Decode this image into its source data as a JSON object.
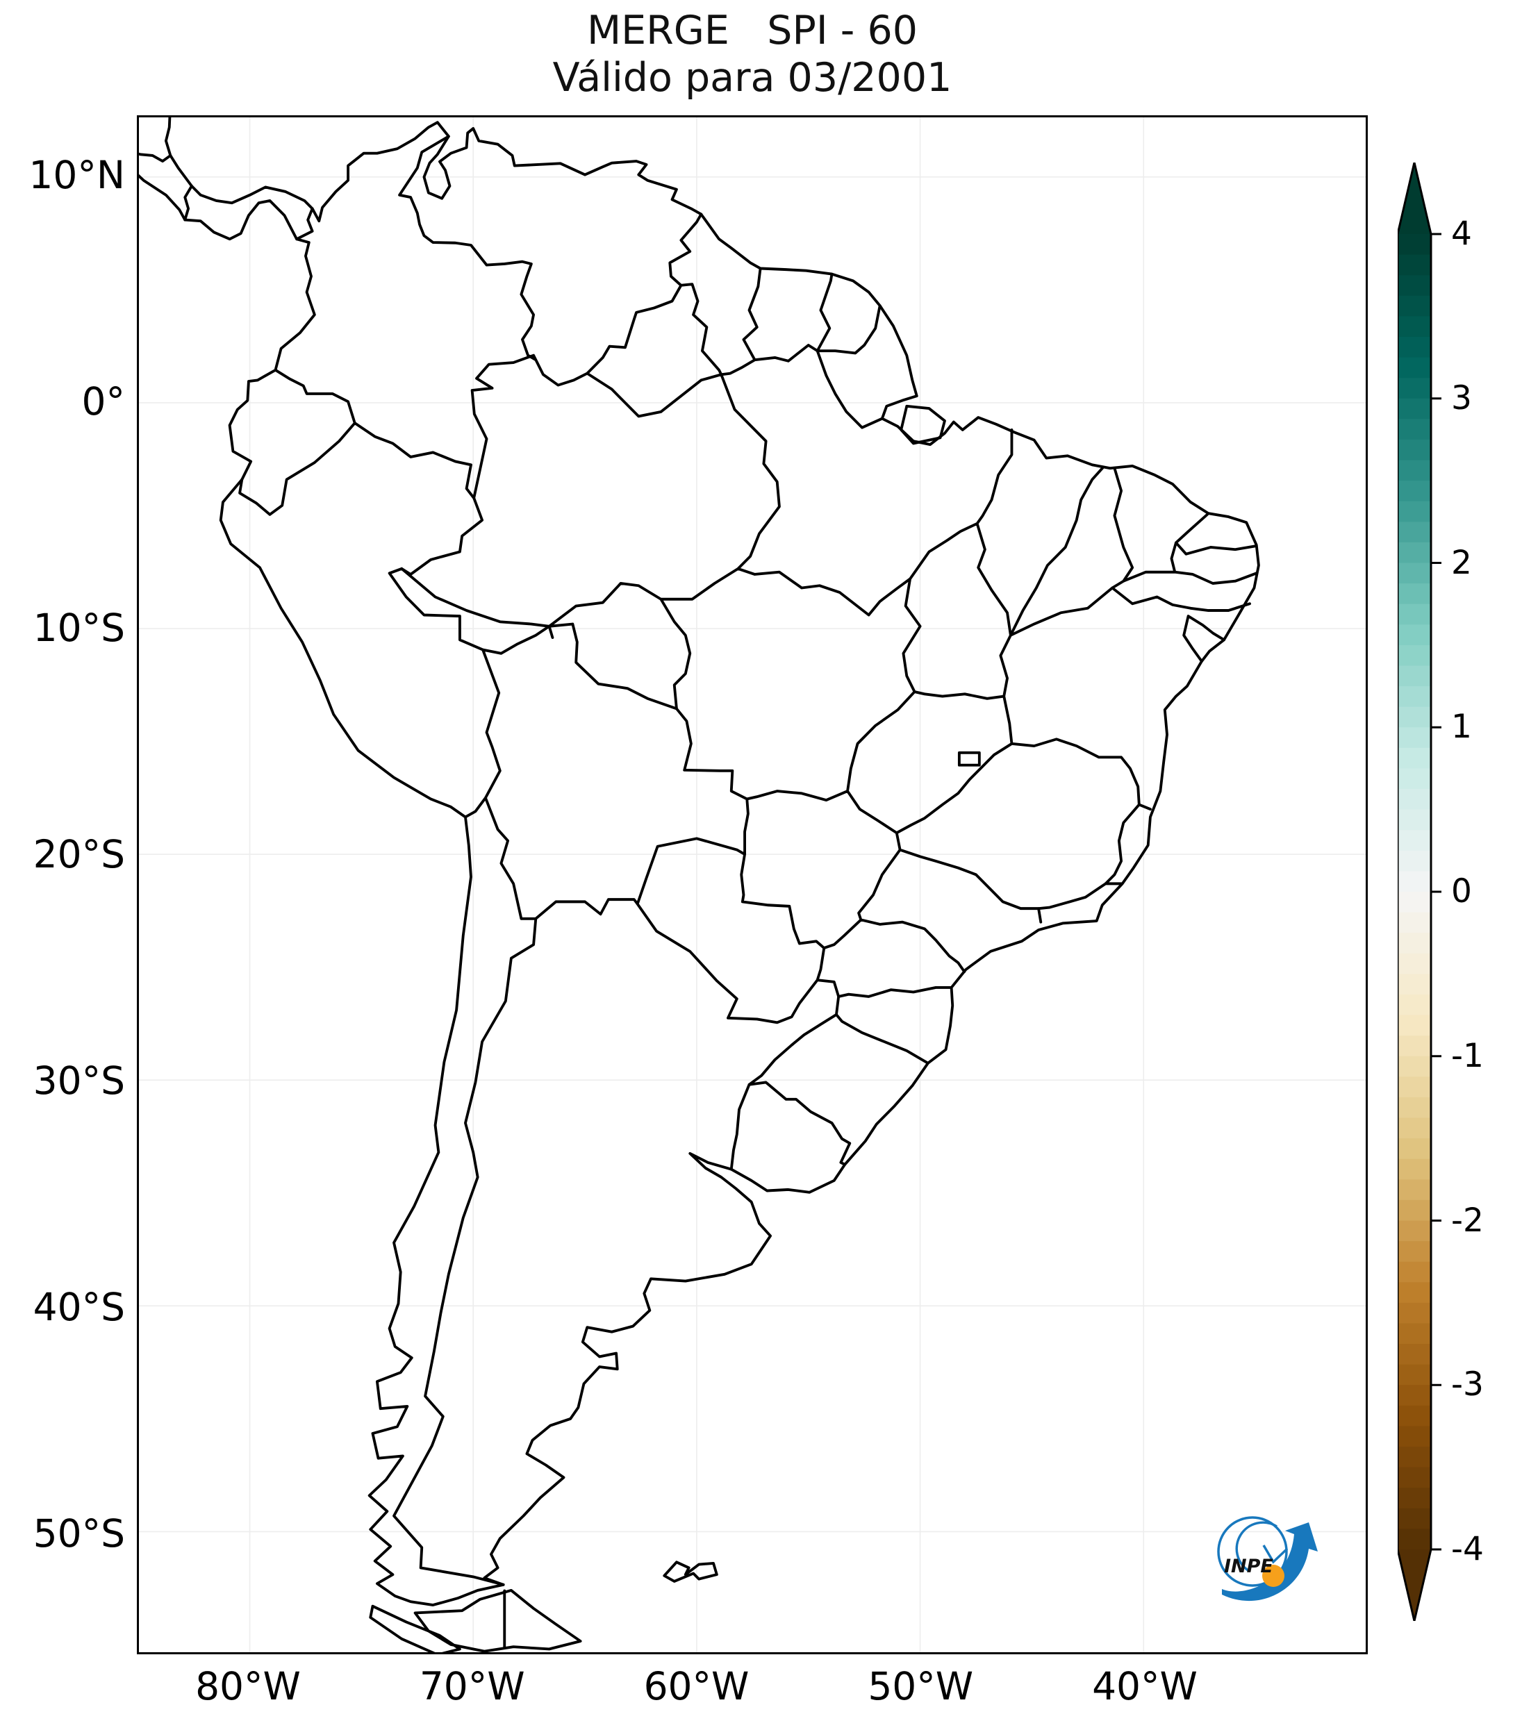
{
  "title": {
    "line1": "MERGE   SPI - 60",
    "line2": "Válido para 03/2001"
  },
  "axes": {
    "lat_ticks": [
      {
        "label": "10°N",
        "value": 10
      },
      {
        "label": "0°",
        "value": 0
      },
      {
        "label": "10°S",
        "value": -10
      },
      {
        "label": "20°S",
        "value": -20
      },
      {
        "label": "30°S",
        "value": -30
      },
      {
        "label": "40°S",
        "value": -40
      },
      {
        "label": "50°S",
        "value": -50
      }
    ],
    "lon_ticks": [
      {
        "label": "80°W",
        "value": -80
      },
      {
        "label": "70°W",
        "value": -70
      },
      {
        "label": "60°W",
        "value": -60
      },
      {
        "label": "50°W",
        "value": -50
      },
      {
        "label": "40°W",
        "value": -40
      }
    ],
    "lon_grid": [
      -80,
      -70,
      -60,
      -50,
      -40,
      -30
    ],
    "lat_grid": [
      10,
      0,
      -10,
      -20,
      -30,
      -40,
      -50
    ]
  },
  "colorbar": {
    "colormap": "BrBG",
    "min": -4,
    "max": 4,
    "level_step": 0.125,
    "extend": "both",
    "ticks": [
      {
        "label": "4",
        "value": 4
      },
      {
        "label": "3",
        "value": 3
      },
      {
        "label": "2",
        "value": 2
      },
      {
        "label": "1",
        "value": 1
      },
      {
        "label": "0",
        "value": 0
      },
      {
        "label": "-1",
        "value": -1
      },
      {
        "label": "-2",
        "value": -2
      },
      {
        "label": "-3",
        "value": -3
      },
      {
        "label": "-4",
        "value": -4
      }
    ],
    "stops": [
      "#543005",
      "#8c510a",
      "#bf812d",
      "#dfc27d",
      "#f6e8c3",
      "#f5f5f5",
      "#c7eae5",
      "#80cdc1",
      "#35978f",
      "#01665e",
      "#003c30"
    ]
  },
  "logo": {
    "label": "INPE",
    "blue": "#1878bd",
    "orange": "#f6a01b",
    "text_color": "#111111"
  },
  "styles": {
    "line_color": "#000000",
    "grid_color": "#ededed",
    "background": "#ffffff"
  },
  "chart_data": {
    "type": "map",
    "region": "South America with Brazilian state borders",
    "projection": "PlateCarree (equirectangular)",
    "extent": {
      "lon_min": -84.96,
      "lon_max": -30.06,
      "lat_min": -55.34,
      "lat_max": 12.64
    },
    "layers": [
      "coastline",
      "country borders",
      "brazil state borders",
      "gridlines every 10 degrees"
    ],
    "data_shading": "none visible (land shown white / SPI near neutral)",
    "colorbar_range": [
      -4,
      4
    ],
    "colorbar_tick_values": [
      4,
      3,
      2,
      1,
      0,
      -1,
      -2,
      -3,
      -4
    ]
  }
}
